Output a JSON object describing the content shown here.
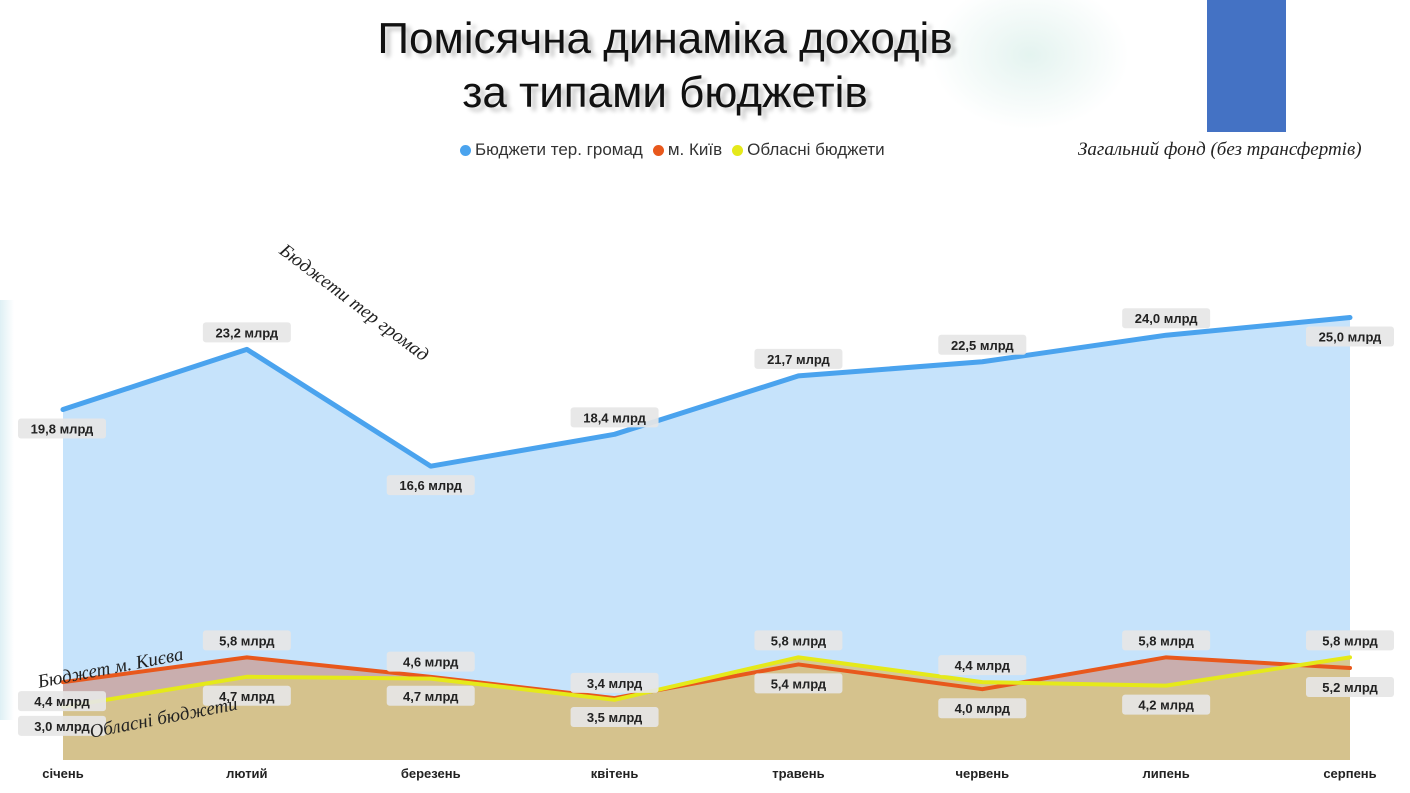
{
  "slide": {
    "title_line1": "Помісячна динаміка доходів",
    "title_line2": "за типами бюджетів",
    "subtitle": "Загальний фонд (без трансфертів)",
    "annotations": {
      "hromady": "Бюджети тер громад",
      "kyiv": "Бюджет м. Києва",
      "oblast": "Обласні бюджети"
    }
  },
  "colors": {
    "hromady": "#4aa3ee",
    "kyiv": "#e8581c",
    "oblast": "#e5e91a",
    "area_fill": "#c6e3fb",
    "accent_rect": "#4472c4"
  },
  "chart_data": {
    "type": "area",
    "categories": [
      "січень",
      "лютий",
      "березень",
      "квітень",
      "травень",
      "червень",
      "липень",
      "серпень"
    ],
    "series": [
      {
        "name": "Бюджети тер. громад",
        "values": [
          19.8,
          23.2,
          16.6,
          18.4,
          21.7,
          22.5,
          24.0,
          25.0
        ],
        "labels": [
          "19,8 млрд",
          "23,2 млрд",
          "16,6 млрд",
          "18,4 млрд",
          "21,7 млрд",
          "22,5 млрд",
          "24,0 млрд",
          "25,0 млрд"
        ]
      },
      {
        "name": "м. Київ",
        "values": [
          4.4,
          5.8,
          4.7,
          3.5,
          5.4,
          4.0,
          5.8,
          5.2
        ],
        "labels": [
          "4,4 млрд",
          "5,8 млрд",
          "4,7 млрд",
          "3,5 млрд",
          "5,4 млрд",
          "4,0 млрд",
          "5,8 млрд",
          "5,2 млрд"
        ]
      },
      {
        "name": "Обласні бюджети",
        "values": [
          3.0,
          4.7,
          4.6,
          3.4,
          5.8,
          4.4,
          4.2,
          5.8
        ],
        "labels": [
          "3,0 млрд",
          "4,7 млрд",
          "4,6 млрд",
          "3,4 млрд",
          "5,8 млрд",
          "4,4 млрд",
          "4,2 млрд",
          "5,8 млрд"
        ]
      }
    ],
    "legend_position": "top",
    "grid": false
  }
}
